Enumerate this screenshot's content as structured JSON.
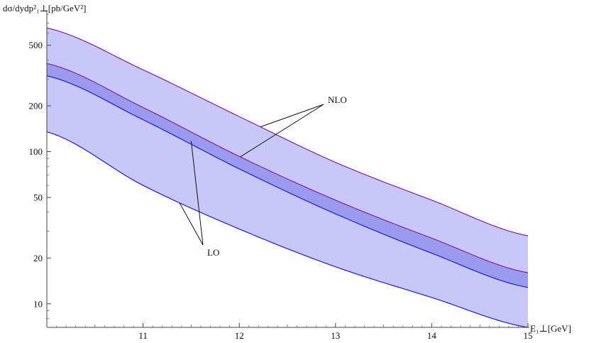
{
  "chart_data": {
    "type": "area",
    "ylabel": "dσ/dydp²₁⊥[pb/GeV²]",
    "xlabel": "E₁⊥[GeV]",
    "y_scale": "log",
    "xlim": [
      10,
      15
    ],
    "ylim": [
      7,
      800
    ],
    "x_ticks": [
      11,
      12,
      13,
      14,
      15
    ],
    "y_ticks": [
      10,
      20,
      50,
      100,
      200,
      500
    ],
    "grid": false,
    "colors": {
      "lo_band": "#c8c8f8",
      "nlo_band": "#9a9aef",
      "lo_line": "#1a1af0",
      "nlo_line": "#8a2090"
    },
    "series": [
      {
        "name": "LO",
        "x": [
          10,
          11,
          12,
          13,
          14,
          15
        ],
        "lower": [
          135,
          60,
          31,
          17.5,
          11,
          7
        ],
        "upper": [
          315,
          162,
          77,
          39,
          21.5,
          12.8
        ]
      },
      {
        "name": "NLO",
        "x": [
          10,
          11,
          12,
          13,
          14,
          15
        ],
        "lower": [
          380,
          195,
          93,
          48,
          27,
          16
        ],
        "upper": [
          650,
          345,
          170,
          85,
          48,
          28
        ]
      }
    ],
    "annotations": [
      {
        "text": "NLO"
      },
      {
        "text": "LO"
      }
    ]
  }
}
